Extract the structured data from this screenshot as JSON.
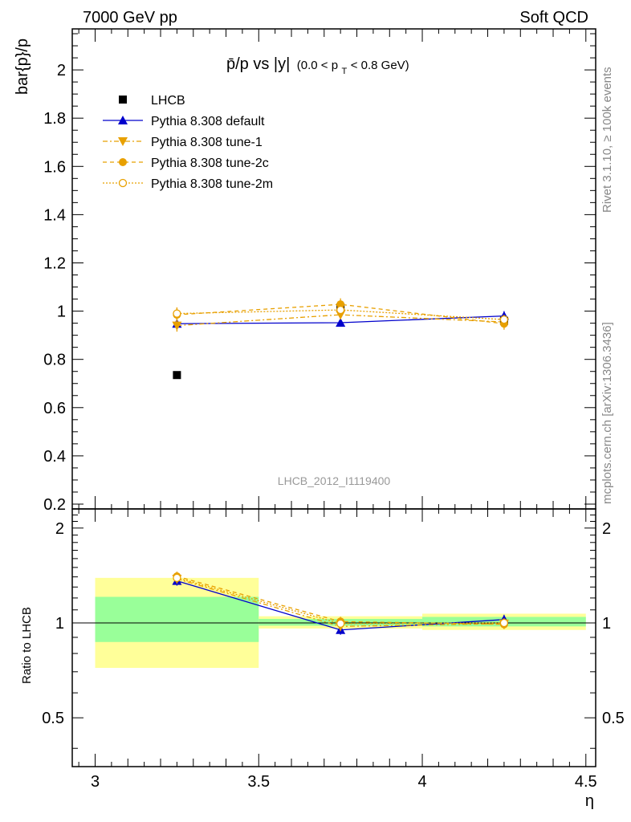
{
  "header": {
    "left": "7000 GeV pp",
    "right": "Soft QCD"
  },
  "side": {
    "rivet": "Rivet 3.1.10, ≥ 100k events",
    "source": "mcplots.cern.ch [arXiv:1306.3436]"
  },
  "title": {
    "main": "p̄/p vs |y|",
    "sub_prefix": "(0.0 < p",
    "sub_index": "T",
    "sub_suffix": " < 0.8 GeV)"
  },
  "watermark": "LHCB_2012_I1119400",
  "colors": {
    "default": "#0000cc",
    "tune": "#e8a000",
    "band_inner": "#99ff99",
    "band_outer": "#ffff99"
  },
  "chart_data": {
    "type": "scatter",
    "xlabel": "η",
    "main": {
      "ylabel": "bar{p}/p",
      "ylim": [
        0.18,
        2.17
      ],
      "yticks": [
        "0.2",
        "0.4",
        "0.6",
        "0.8",
        "1",
        "1.2",
        "1.4",
        "1.6",
        "1.8",
        "2"
      ],
      "series": [
        {
          "name": "LHCB",
          "x": [
            3.25,
            3.75,
            4.25
          ],
          "y": [
            0.735,
            1.015,
            0.96
          ],
          "err": [
            0.005,
            0.02,
            0.02
          ]
        },
        {
          "name": "Pythia 8.308 default",
          "x": [
            3.25,
            3.75,
            4.25
          ],
          "y": [
            0.948,
            0.952,
            0.98
          ],
          "err": [
            0.02,
            0.015,
            0.02
          ]
        },
        {
          "name": "Pythia 8.308 tune-1",
          "x": [
            3.25,
            3.75,
            4.25
          ],
          "y": [
            0.94,
            0.985,
            0.955
          ],
          "err": [
            0.025,
            0.02,
            0.02
          ]
        },
        {
          "name": "Pythia 8.308 tune-2c",
          "x": [
            3.25,
            3.75,
            4.25
          ],
          "y": [
            0.985,
            1.028,
            0.948
          ],
          "err": [
            0.03,
            0.025,
            0.025
          ]
        },
        {
          "name": "Pythia 8.308 tune-2m",
          "x": [
            3.25,
            3.75,
            4.25
          ],
          "y": [
            0.99,
            1.005,
            0.965
          ],
          "err": [
            0.025,
            0.02,
            0.02
          ]
        }
      ]
    },
    "ratio": {
      "ylabel": "Ratio to LHCB",
      "ylim": [
        0.35,
        2.3
      ],
      "yticks": [
        "0.5",
        "1",
        "2"
      ],
      "bands": [
        {
          "x": [
            3.0,
            3.5
          ],
          "inner": [
            0.87,
            1.21
          ],
          "outer": [
            0.72,
            1.39
          ]
        },
        {
          "x": [
            3.5,
            4.0
          ],
          "inner": [
            0.98,
            1.03
          ],
          "outer": [
            0.96,
            1.05
          ]
        },
        {
          "x": [
            4.0,
            4.5
          ],
          "inner": [
            0.975,
            1.045
          ],
          "outer": [
            0.95,
            1.07
          ]
        }
      ],
      "series": [
        {
          "name": "Pythia 8.308 default",
          "x": [
            3.25,
            3.75,
            4.25
          ],
          "y": [
            1.36,
            0.95,
            1.025
          ]
        },
        {
          "name": "Pythia 8.308 tune-1",
          "x": [
            3.25,
            3.75,
            4.25
          ],
          "y": [
            1.38,
            0.975,
            0.995
          ]
        },
        {
          "name": "Pythia 8.308 tune-2c",
          "x": [
            3.25,
            3.75,
            4.25
          ],
          "y": [
            1.405,
            1.01,
            0.99
          ]
        },
        {
          "name": "Pythia 8.308 tune-2m",
          "x": [
            3.25,
            3.75,
            4.25
          ],
          "y": [
            1.39,
            0.995,
            1.0
          ]
        }
      ]
    },
    "xlim": [
      2.93,
      4.53
    ],
    "xticks": [
      "3",
      "3.5",
      "4",
      "4.5"
    ]
  }
}
